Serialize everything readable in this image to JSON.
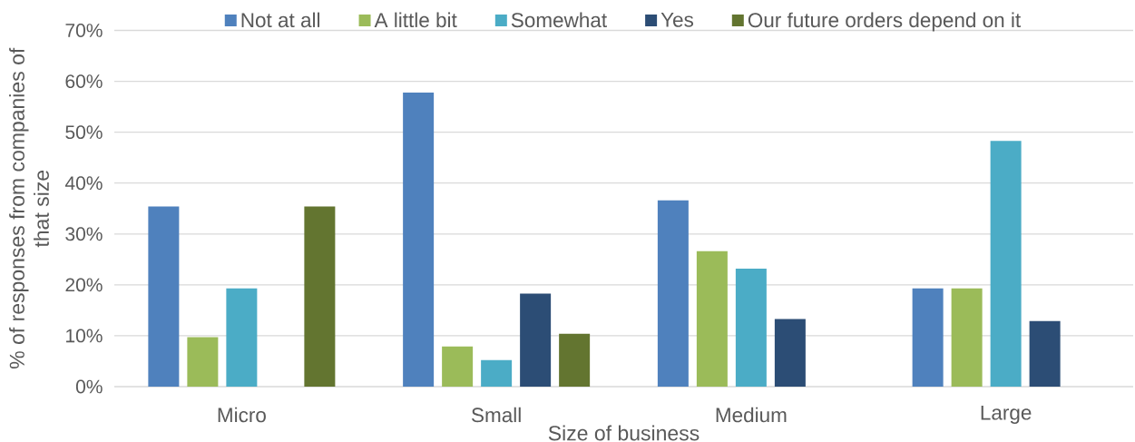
{
  "chart_data": {
    "type": "bar",
    "xlabel": "Size of business",
    "ylabel": "% of responses from companies of that size",
    "categories": [
      "Micro",
      "Small",
      "Medium",
      "Large"
    ],
    "series": [
      {
        "name": "Not at all",
        "color": "#4f81bd",
        "values": [
          35.4,
          57.8,
          36.6,
          19.3
        ]
      },
      {
        "name": "A little bit",
        "color": "#9bbb59",
        "values": [
          9.7,
          7.9,
          26.6,
          19.3
        ]
      },
      {
        "name": "Somewhat",
        "color": "#4bacc6",
        "values": [
          19.3,
          5.2,
          23.2,
          48.3
        ]
      },
      {
        "name": "Yes",
        "color": "#2c4d75",
        "values": [
          null,
          18.3,
          13.3,
          12.9
        ]
      },
      {
        "name": "Our future orders depend on it",
        "color": "#637530",
        "values": [
          35.4,
          10.4,
          null,
          null
        ]
      }
    ],
    "ylim": [
      0,
      70
    ],
    "yticks": [
      {
        "value": 0,
        "label": "0%"
      },
      {
        "value": 10,
        "label": "10%"
      },
      {
        "value": 20,
        "label": "20%"
      },
      {
        "value": 30,
        "label": "30%"
      },
      {
        "value": 40,
        "label": "40%"
      },
      {
        "value": 50,
        "label": "50%"
      },
      {
        "value": 60,
        "label": "60%"
      },
      {
        "value": 70,
        "label": "70%"
      }
    ],
    "grid": "y",
    "legend": "top"
  }
}
